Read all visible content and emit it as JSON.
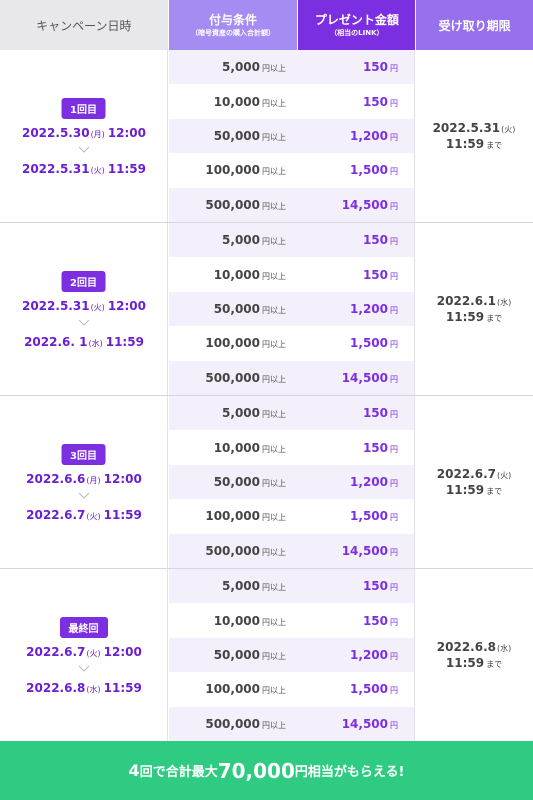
{
  "header": {
    "campaign": "キャンペーン日時",
    "condition": "付与条件",
    "condition_sub": "（暗号資産の購入合計額）",
    "amount": "プレゼント金額",
    "amount_sub": "（相当のLINK）",
    "deadline": "受け取り期限"
  },
  "units": {
    "above": "円以上",
    "yen": "円",
    "until": "まで"
  },
  "tiers": [
    {
      "condition": "5,000",
      "amount": "150"
    },
    {
      "condition": "10,000",
      "amount": "150"
    },
    {
      "condition": "50,000",
      "amount": "1,200"
    },
    {
      "condition": "100,000",
      "amount": "1,500"
    },
    {
      "condition": "500,000",
      "amount": "14,500"
    }
  ],
  "rounds": [
    {
      "badge": "1回目",
      "start_date": "2022.5.30",
      "start_dow": "(月)",
      "start_time": "12:00",
      "end_date": "2022.5.31",
      "end_dow": "(火)",
      "end_time": "11:59",
      "deadline_date": "2022.5.31",
      "deadline_dow": "(火)",
      "deadline_time": "11:59"
    },
    {
      "badge": "2回目",
      "start_date": "2022.5.31",
      "start_dow": "(火)",
      "start_time": "12:00",
      "end_date": "2022.6. 1",
      "end_dow": "(水)",
      "end_time": "11:59",
      "deadline_date": "2022.6.1",
      "deadline_dow": "(水)",
      "deadline_time": "11:59"
    },
    {
      "badge": "3回目",
      "start_date": "2022.6.6",
      "start_dow": "(月)",
      "start_time": "12:00",
      "end_date": "2022.6.7",
      "end_dow": "(火)",
      "end_time": "11:59",
      "deadline_date": "2022.6.7",
      "deadline_dow": "(火)",
      "deadline_time": "11:59"
    },
    {
      "badge": "最終回",
      "start_date": "2022.6.7",
      "start_dow": "(火)",
      "start_time": "12:00",
      "end_date": "2022.6.8",
      "end_dow": "(水)",
      "end_time": "11:59",
      "deadline_date": "2022.6.8",
      "deadline_dow": "(水)",
      "deadline_time": "11:59"
    }
  ],
  "footer": {
    "part1": "4",
    "part2": "回で合計最大",
    "part3": "70,000",
    "part4": "円相当がもらえる!"
  },
  "colors": {
    "purple": "#7b2fe0",
    "light_purple": "#a58cf2",
    "green": "#2fcb82"
  }
}
